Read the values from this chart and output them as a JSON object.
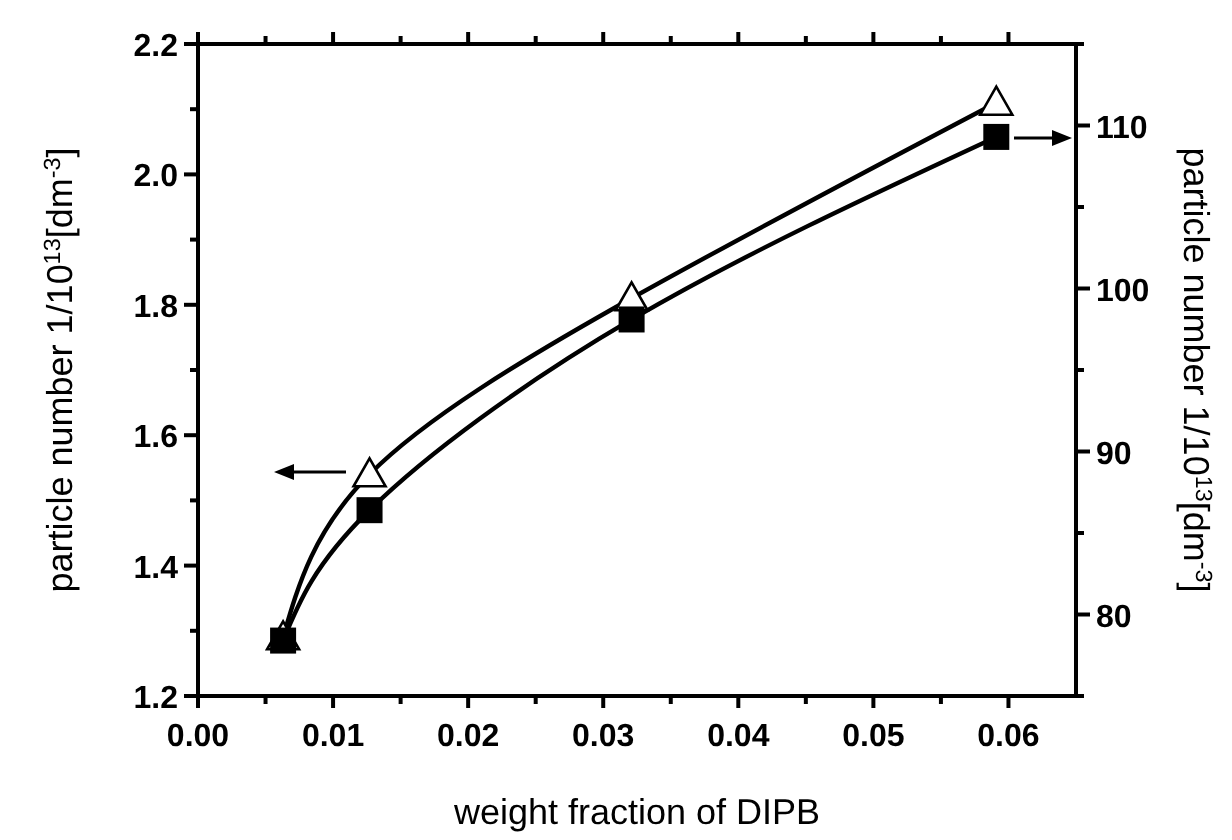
{
  "chart_data": {
    "type": "line",
    "xlabel": "weight fraction of DIPB",
    "ylabel": "particle number 1/10$^{13}$[dm$^{-3}$]",
    "y2label": "particle number 1/10$^{13}$[dm$^{-3}$]",
    "x": [
      0.0063,
      0.0127,
      0.0321,
      0.0591
    ],
    "xlim": [
      0,
      0.065
    ],
    "xticks": [
      {
        "value": 0,
        "label": "0.00"
      },
      0.01,
      0.02,
      0.03,
      0.04,
      0.05,
      0.06
    ],
    "ylim": [
      1.2,
      2.2
    ],
    "yticks": [
      1.2,
      {
        "value": 1.3,
        "label": null
      },
      1.4,
      {
        "value": 1.5,
        "label": null
      },
      1.6,
      {
        "value": 1.7,
        "label": null
      },
      1.8,
      {
        "value": 1.9,
        "label": null
      },
      {
        "value": 2,
        "label": "2.0"
      },
      {
        "value": 2.1,
        "label": null
      },
      2.2
    ],
    "y2lim": [
      75,
      115
    ],
    "y2ticks": [
      {
        "value": 75,
        "label": null
      },
      80,
      {
        "value": 85,
        "label": null
      },
      90,
      {
        "value": 95,
        "label": null
      },
      100,
      {
        "value": 105,
        "label": null
      },
      110,
      {
        "value": 115,
        "label": null
      }
    ],
    "series": [
      {
        "color": "#000000",
        "marker": "triangle",
        "values": [
          1.29,
          1.54,
          1.81,
          2.11
        ]
      },
      {
        "color": "#000000",
        "marker": "square",
        "axis": "y2",
        "values": [
          78.4,
          86.4,
          98.1,
          109.3
        ]
      }
    ],
    "grid": false
  }
}
